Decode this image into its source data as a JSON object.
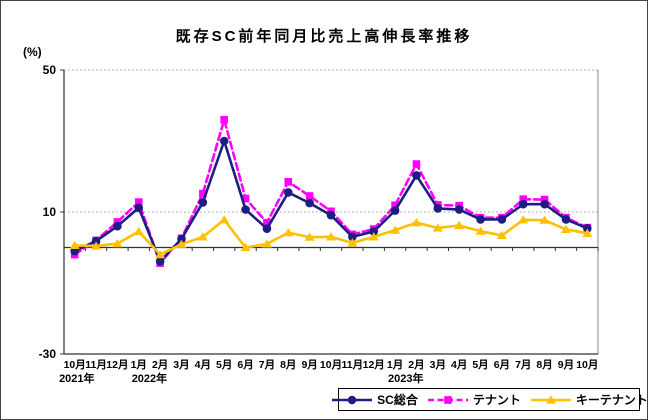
{
  "chart_data": {
    "type": "line",
    "title": "既存SC前年同月比売上高伸長率推移",
    "y_unit_label": "(%)",
    "ylim": [
      -30,
      50
    ],
    "yticks": [
      50,
      10,
      -30
    ],
    "gridlines_at": [
      50,
      10
    ],
    "zero_line": true,
    "grid": "dotted-horizontal-only",
    "legend_position": "bottom-right",
    "x_categories": [
      "10月",
      "11月",
      "12月",
      "1月",
      "2月",
      "3月",
      "4月",
      "5月",
      "6月",
      "7月",
      "8月",
      "9月",
      "10月",
      "11月",
      "12月",
      "1月",
      "2月",
      "3月",
      "4月",
      "5月",
      "6月",
      "7月",
      "8月",
      "9月",
      "10月"
    ],
    "x_year_labels": [
      {
        "label": "2021年",
        "at_index": 0
      },
      {
        "label": "2022年",
        "at_index": 3
      },
      {
        "label": "2023年",
        "at_index": 15
      }
    ],
    "series": [
      {
        "name": "SC総合",
        "color": "#1e1e82",
        "line_style": "solid",
        "marker": "circle",
        "values": [
          -1.0,
          1.8,
          6.0,
          11.2,
          -3.9,
          2.4,
          12.7,
          30.0,
          10.7,
          5.3,
          15.5,
          12.5,
          9.1,
          3.0,
          4.5,
          10.4,
          20.3,
          11.0,
          10.7,
          7.9,
          7.9,
          12.2,
          12.2,
          7.9,
          5.4
        ]
      },
      {
        "name": "テナント",
        "color": "#ff00ff",
        "line_style": "dashed",
        "marker": "square",
        "values": [
          -2.0,
          2.0,
          7.2,
          12.8,
          -4.4,
          2.6,
          15.2,
          36.0,
          13.8,
          7.0,
          18.5,
          14.5,
          10.2,
          3.7,
          5.2,
          11.9,
          23.5,
          12.0,
          11.8,
          8.4,
          8.4,
          13.6,
          13.5,
          8.4,
          5.6
        ]
      },
      {
        "name": "キーテナント",
        "color": "#ffc000",
        "line_style": "solid",
        "marker": "triangle",
        "values": [
          0.6,
          0.4,
          1.1,
          4.5,
          -2.0,
          0.9,
          3.0,
          7.8,
          0.0,
          1.0,
          4.2,
          2.9,
          3.0,
          1.3,
          3.0,
          4.9,
          7.0,
          5.5,
          6.2,
          4.6,
          3.4,
          7.8,
          7.7,
          5.1,
          4.0
        ]
      }
    ]
  }
}
